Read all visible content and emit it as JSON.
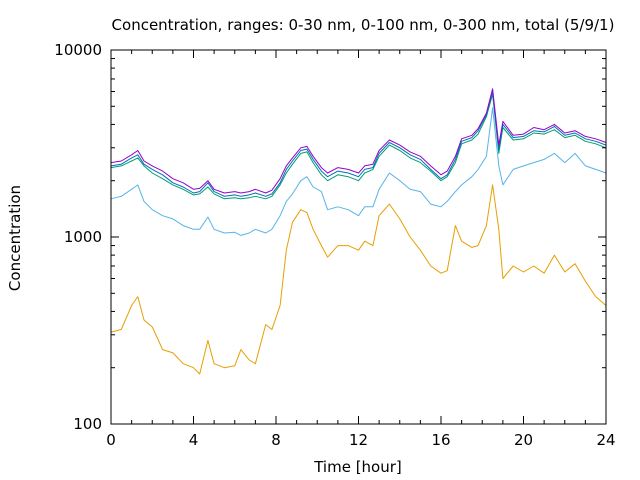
{
  "chart_data": {
    "type": "line",
    "title": "Concentration, ranges: 0-30 nm, 0-100 nm, 0-300 nm, total (5/9/1)",
    "xlabel": "Time [hour]",
    "ylabel": "Concentration",
    "xlim": [
      0,
      24
    ],
    "ylim": [
      100,
      10000
    ],
    "yscale": "log",
    "grid": false,
    "legend": "none",
    "xticks": [
      0,
      4,
      8,
      12,
      16,
      20,
      24
    ],
    "xtick_labels": [
      "0",
      "4",
      "8",
      "12",
      "16",
      "20",
      "24"
    ],
    "yticks": [
      100,
      1000,
      10000
    ],
    "ytick_labels": [
      "100",
      "1000",
      "10000"
    ],
    "series": [
      {
        "color": "#e69f00",
        "x": [
          0,
          0.5,
          1,
          1.3,
          1.6,
          2,
          2.5,
          3,
          3.5,
          4,
          4.3,
          4.7,
          5,
          5.5,
          6,
          6.3,
          6.7,
          7,
          7.5,
          7.8,
          8.2,
          8.5,
          8.8,
          9.2,
          9.5,
          9.8,
          10.2,
          10.5,
          11,
          11.5,
          12,
          12.3,
          12.7,
          13,
          13.5,
          14,
          14.5,
          15,
          15.5,
          16,
          16.3,
          16.7,
          17,
          17.5,
          17.8,
          18.2,
          18.5,
          18.8,
          19,
          19.5,
          20,
          20.5,
          21,
          21.5,
          22,
          22.5,
          23,
          23.5,
          24
        ],
        "y": [
          310,
          320,
          430,
          480,
          360,
          330,
          250,
          240,
          210,
          200,
          185,
          280,
          210,
          200,
          205,
          250,
          220,
          210,
          340,
          320,
          430,
          850,
          1200,
          1400,
          1350,
          1100,
          900,
          780,
          900,
          900,
          850,
          950,
          900,
          1300,
          1500,
          1250,
          1000,
          850,
          700,
          640,
          660,
          1150,
          950,
          880,
          900,
          1150,
          1900,
          1100,
          600,
          700,
          650,
          700,
          640,
          800,
          650,
          720,
          580,
          480,
          430
        ]
      },
      {
        "color": "#56b4e9",
        "x": [
          0,
          0.5,
          1,
          1.3,
          1.6,
          2,
          2.5,
          3,
          3.5,
          4,
          4.3,
          4.7,
          5,
          5.5,
          6,
          6.3,
          6.7,
          7,
          7.5,
          7.8,
          8.2,
          8.5,
          8.8,
          9.2,
          9.5,
          9.8,
          10.2,
          10.5,
          11,
          11.5,
          12,
          12.3,
          12.7,
          13,
          13.5,
          14,
          14.5,
          15,
          15.5,
          16,
          16.3,
          16.7,
          17,
          17.5,
          17.8,
          18.2,
          18.5,
          18.8,
          19,
          19.5,
          20,
          20.5,
          21,
          21.5,
          22,
          22.5,
          23,
          23.5,
          24
        ],
        "y": [
          1600,
          1650,
          1800,
          1900,
          1550,
          1400,
          1300,
          1250,
          1150,
          1100,
          1100,
          1280,
          1100,
          1050,
          1060,
          1020,
          1050,
          1100,
          1050,
          1100,
          1300,
          1550,
          1700,
          2000,
          2100,
          1850,
          1750,
          1400,
          1450,
          1400,
          1300,
          1450,
          1450,
          1800,
          2200,
          2000,
          1800,
          1750,
          1500,
          1450,
          1550,
          1750,
          1900,
          2100,
          2300,
          2700,
          4900,
          2400,
          1900,
          2300,
          2400,
          2500,
          2600,
          2800,
          2500,
          2800,
          2400,
          2300,
          2200
        ]
      },
      {
        "color": "#009e73",
        "x": [
          0,
          0.5,
          1,
          1.3,
          1.6,
          2,
          2.5,
          3,
          3.5,
          4,
          4.3,
          4.7,
          5,
          5.5,
          6,
          6.3,
          6.7,
          7,
          7.5,
          7.8,
          8.2,
          8.5,
          8.8,
          9.2,
          9.5,
          9.8,
          10.2,
          10.5,
          11,
          11.5,
          12,
          12.3,
          12.7,
          13,
          13.5,
          14,
          14.5,
          15,
          15.5,
          16,
          16.3,
          16.7,
          17,
          17.5,
          17.8,
          18.2,
          18.5,
          18.8,
          19,
          19.5,
          20,
          20.5,
          21,
          21.5,
          22,
          22.5,
          23,
          23.5,
          24
        ],
        "y": [
          2350,
          2400,
          2550,
          2650,
          2400,
          2200,
          2050,
          1900,
          1800,
          1680,
          1700,
          1850,
          1700,
          1600,
          1620,
          1600,
          1620,
          1650,
          1600,
          1650,
          1900,
          2200,
          2450,
          2800,
          2850,
          2500,
          2150,
          2000,
          2150,
          2100,
          2000,
          2200,
          2300,
          2700,
          3100,
          2900,
          2650,
          2500,
          2250,
          2000,
          2100,
          2500,
          3150,
          3300,
          3550,
          4400,
          5800,
          2800,
          3850,
          3300,
          3350,
          3600,
          3550,
          3750,
          3400,
          3500,
          3250,
          3150,
          3000
        ]
      },
      {
        "color": "#0072b2",
        "x": [
          0,
          0.5,
          1,
          1.3,
          1.6,
          2,
          2.5,
          3,
          3.5,
          4,
          4.3,
          4.7,
          5,
          5.5,
          6,
          6.3,
          6.7,
          7,
          7.5,
          7.8,
          8.2,
          8.5,
          8.8,
          9.2,
          9.5,
          9.8,
          10.2,
          10.5,
          11,
          11.5,
          12,
          12.3,
          12.7,
          13,
          13.5,
          14,
          14.5,
          15,
          15.5,
          16,
          16.3,
          16.7,
          17,
          17.5,
          17.8,
          18.2,
          18.5,
          18.8,
          19,
          19.5,
          20,
          20.5,
          21,
          21.5,
          22,
          22.5,
          23,
          23.5,
          24
        ],
        "y": [
          2400,
          2450,
          2650,
          2750,
          2450,
          2300,
          2150,
          1950,
          1850,
          1720,
          1750,
          1950,
          1750,
          1650,
          1680,
          1650,
          1680,
          1720,
          1650,
          1700,
          1950,
          2300,
          2550,
          2900,
          2950,
          2600,
          2250,
          2100,
          2250,
          2200,
          2100,
          2300,
          2350,
          2800,
          3200,
          3000,
          2750,
          2600,
          2300,
          2050,
          2150,
          2600,
          3250,
          3400,
          3700,
          4500,
          6000,
          2950,
          4000,
          3400,
          3450,
          3700,
          3650,
          3900,
          3500,
          3600,
          3350,
          3250,
          3100
        ]
      },
      {
        "color": "#9400d3",
        "x": [
          0,
          0.5,
          1,
          1.3,
          1.6,
          2,
          2.5,
          3,
          3.5,
          4,
          4.3,
          4.7,
          5,
          5.5,
          6,
          6.3,
          6.7,
          7,
          7.5,
          7.8,
          8.2,
          8.5,
          8.8,
          9.2,
          9.5,
          9.8,
          10.2,
          10.5,
          11,
          11.5,
          12,
          12.3,
          12.7,
          13,
          13.5,
          14,
          14.5,
          15,
          15.5,
          16,
          16.3,
          16.7,
          17,
          17.5,
          17.8,
          18.2,
          18.5,
          18.8,
          19,
          19.5,
          20,
          20.5,
          21,
          21.5,
          22,
          22.5,
          23,
          23.5,
          24
        ],
        "y": [
          2500,
          2550,
          2750,
          2900,
          2550,
          2400,
          2250,
          2050,
          1950,
          1800,
          1820,
          2000,
          1800,
          1720,
          1750,
          1720,
          1750,
          1800,
          1720,
          1780,
          2050,
          2400,
          2650,
          3000,
          3050,
          2700,
          2350,
          2200,
          2350,
          2300,
          2200,
          2400,
          2450,
          2900,
          3300,
          3100,
          2850,
          2700,
          2400,
          2150,
          2250,
          2700,
          3350,
          3500,
          3800,
          4600,
          6200,
          3100,
          4150,
          3500,
          3550,
          3850,
          3750,
          4000,
          3600,
          3700,
          3450,
          3350,
          3200
        ]
      }
    ]
  }
}
